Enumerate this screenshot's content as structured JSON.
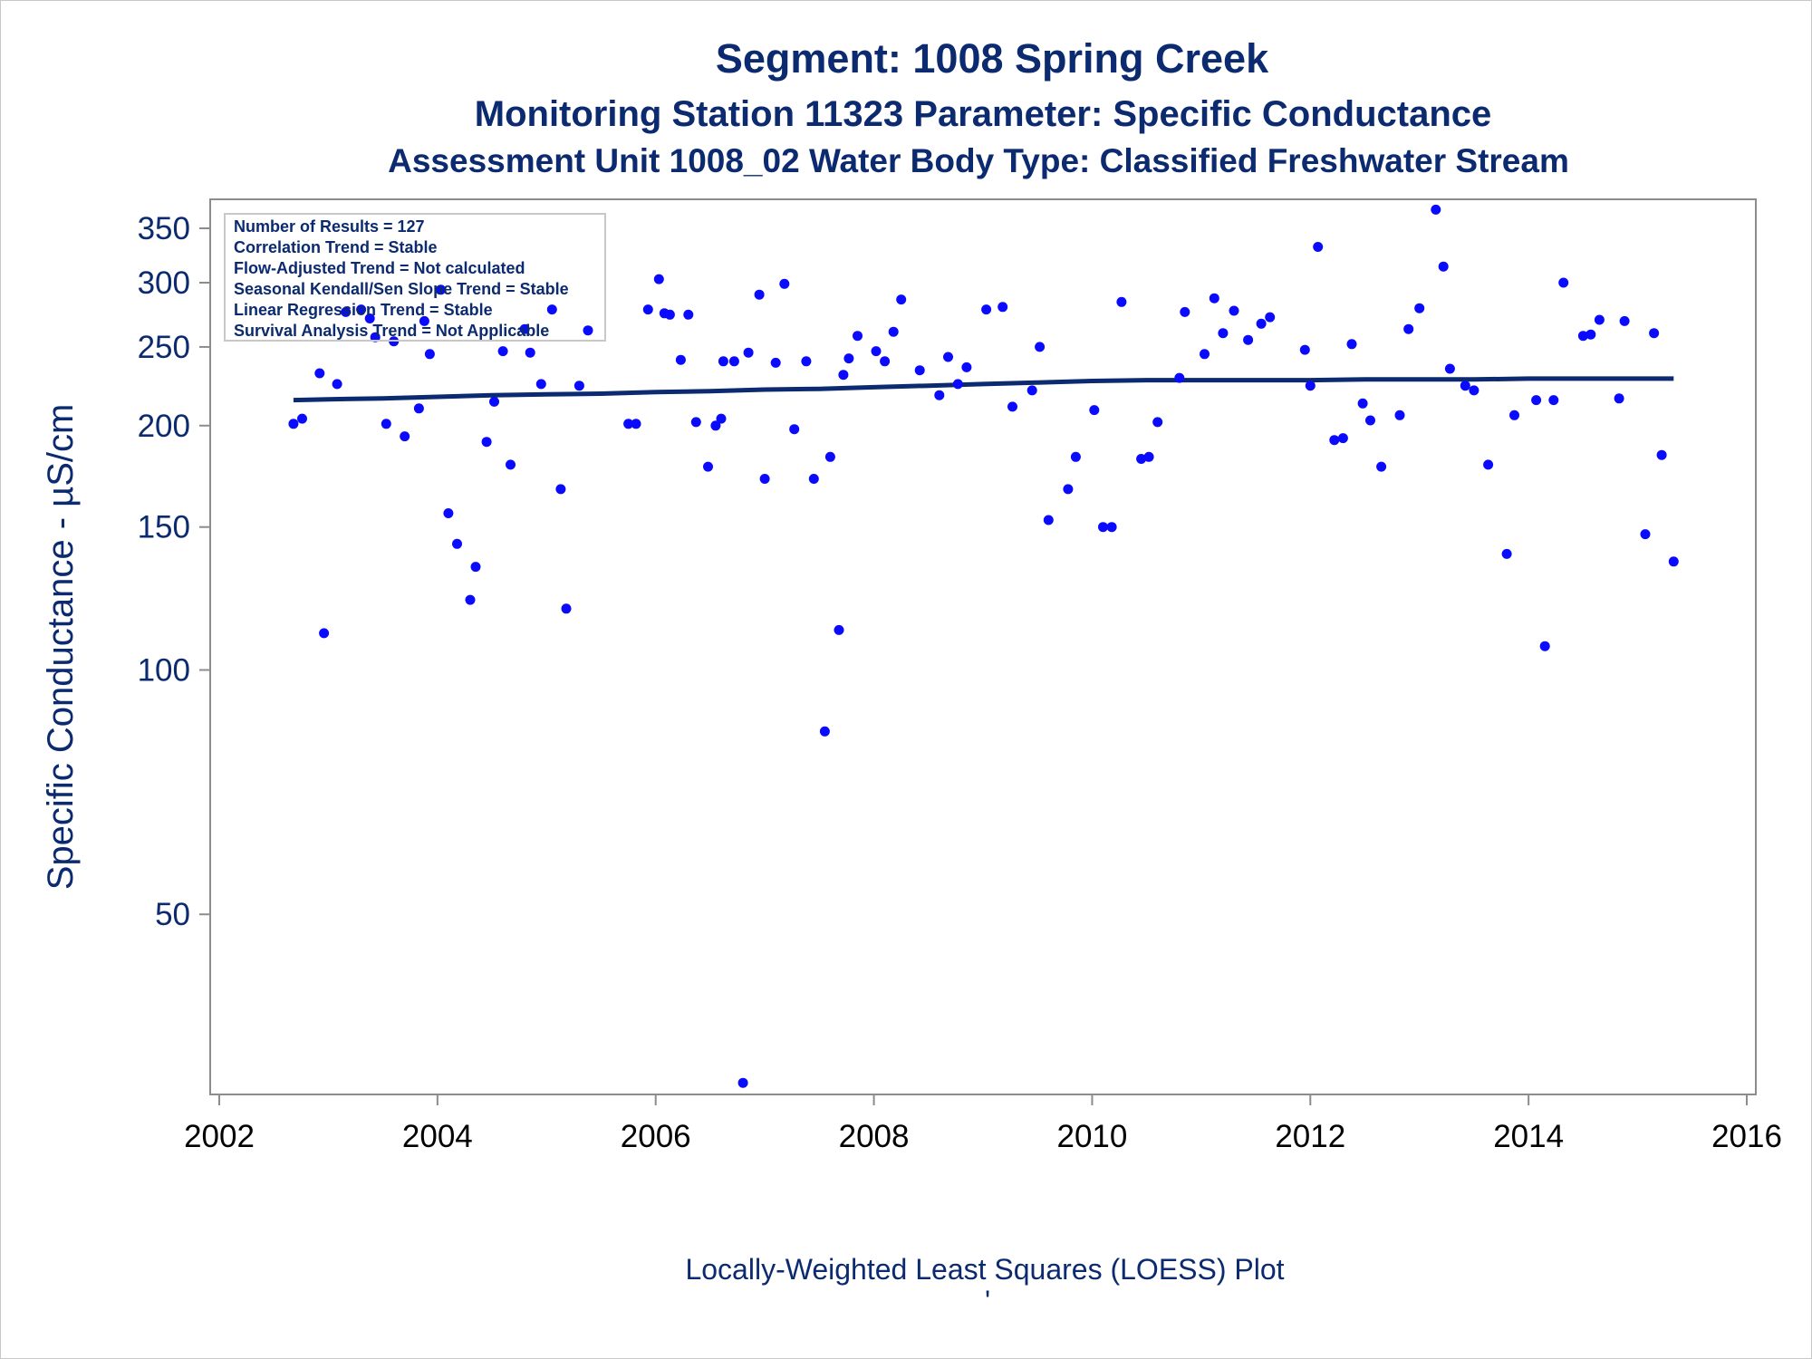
{
  "titles": {
    "line1": "Segment: 1008  Spring Creek",
    "line2": "Monitoring Station 11323 Parameter: Specific Conductance",
    "line3": "Assessment Unit 1008_02   Water Body Type: Classified Freshwater Stream"
  },
  "stats_box": [
    "Number of Results = 127",
    "Correlation Trend = Stable",
    "Flow-Adjusted Trend = Not calculated",
    "Seasonal Kendall/Sen Slope Trend = Stable",
    "Linear Regression Trend = Stable",
    "Survival Analysis Trend = Not Applicable"
  ],
  "footnote": "Locally-Weighted Least Squares (LOESS) Plot",
  "footnote_mark": "'",
  "colors": {
    "text": "#0b2a6f",
    "points": "#0a0aff",
    "loess_line": "#0b2a6f",
    "axis": "#8c8c8c"
  },
  "chart_data": {
    "type": "scatter",
    "title": "",
    "xlabel": "",
    "ylabel": "Specific Conductance -  µS/cm",
    "y_scale": "log",
    "xlim": [
      2002,
      2016
    ],
    "ylim": [
      30,
      380
    ],
    "x_ticks": [
      2002,
      2004,
      2006,
      2008,
      2010,
      2012,
      2014,
      2016
    ],
    "y_ticks": [
      50,
      100,
      150,
      200,
      250,
      300,
      350
    ],
    "grid": false,
    "legend": "none",
    "series": [
      {
        "kind": "points",
        "points": [
          [
            2002.68,
            201
          ],
          [
            2002.76,
            204
          ],
          [
            2002.92,
            232
          ],
          [
            2002.96,
            111
          ],
          [
            2003.08,
            225
          ],
          [
            2003.16,
            276
          ],
          [
            2003.3,
            278
          ],
          [
            2003.38,
            271
          ],
          [
            2003.43,
            257
          ],
          [
            2003.53,
            201
          ],
          [
            2003.6,
            254
          ],
          [
            2003.7,
            194
          ],
          [
            2003.83,
            210
          ],
          [
            2003.88,
            269
          ],
          [
            2003.93,
            245
          ],
          [
            2004.03,
            294
          ],
          [
            2004.1,
            156
          ],
          [
            2004.18,
            143
          ],
          [
            2004.3,
            122
          ],
          [
            2004.35,
            134
          ],
          [
            2004.45,
            191
          ],
          [
            2004.52,
            214
          ],
          [
            2004.6,
            247
          ],
          [
            2004.67,
            179
          ],
          [
            2004.8,
            263
          ],
          [
            2004.85,
            246
          ],
          [
            2004.95,
            225
          ],
          [
            2005.05,
            278
          ],
          [
            2005.13,
            167
          ],
          [
            2005.18,
            119
          ],
          [
            2005.3,
            224
          ],
          [
            2005.38,
            262
          ],
          [
            2005.75,
            201
          ],
          [
            2005.82,
            201
          ],
          [
            2005.93,
            278
          ],
          [
            2006.03,
            303
          ],
          [
            2006.08,
            275
          ],
          [
            2006.13,
            274
          ],
          [
            2006.23,
            241
          ],
          [
            2006.3,
            274
          ],
          [
            2006.37,
            202
          ],
          [
            2006.48,
            178
          ],
          [
            2006.55,
            200
          ],
          [
            2006.6,
            204
          ],
          [
            2006.62,
            240
          ],
          [
            2006.72,
            240
          ],
          [
            2006.8,
            31
          ],
          [
            2006.85,
            246
          ],
          [
            2006.95,
            290
          ],
          [
            2007.0,
            172
          ],
          [
            2007.1,
            239
          ],
          [
            2007.18,
            299
          ],
          [
            2007.27,
            198
          ],
          [
            2007.38,
            240
          ],
          [
            2007.45,
            172
          ],
          [
            2007.55,
            84
          ],
          [
            2007.6,
            183
          ],
          [
            2007.68,
            112
          ],
          [
            2007.72,
            231
          ],
          [
            2007.77,
            242
          ],
          [
            2007.85,
            258
          ],
          [
            2008.02,
            247
          ],
          [
            2008.1,
            240
          ],
          [
            2008.18,
            261
          ],
          [
            2008.25,
            286
          ],
          [
            2008.42,
            234
          ],
          [
            2008.6,
            218
          ],
          [
            2008.68,
            243
          ],
          [
            2008.77,
            225
          ],
          [
            2008.85,
            236
          ],
          [
            2009.03,
            278
          ],
          [
            2009.18,
            280
          ],
          [
            2009.27,
            211
          ],
          [
            2009.45,
            221
          ],
          [
            2009.52,
            250
          ],
          [
            2009.6,
            153
          ],
          [
            2009.78,
            167
          ],
          [
            2009.85,
            183
          ],
          [
            2010.02,
            209
          ],
          [
            2010.1,
            150
          ],
          [
            2010.18,
            150
          ],
          [
            2010.27,
            284
          ],
          [
            2010.45,
            182
          ],
          [
            2010.52,
            183
          ],
          [
            2010.6,
            202
          ],
          [
            2010.8,
            229
          ],
          [
            2010.85,
            276
          ],
          [
            2011.03,
            245
          ],
          [
            2011.12,
            287
          ],
          [
            2011.2,
            260
          ],
          [
            2011.3,
            277
          ],
          [
            2011.43,
            255
          ],
          [
            2011.55,
            267
          ],
          [
            2011.63,
            272
          ],
          [
            2011.95,
            248
          ],
          [
            2012.0,
            224
          ],
          [
            2012.07,
            332
          ],
          [
            2012.22,
            192
          ],
          [
            2012.3,
            193
          ],
          [
            2012.38,
            252
          ],
          [
            2012.48,
            213
          ],
          [
            2012.55,
            203
          ],
          [
            2012.65,
            178
          ],
          [
            2012.82,
            206
          ],
          [
            2012.9,
            263
          ],
          [
            2013.0,
            279
          ],
          [
            2013.15,
            369
          ],
          [
            2013.22,
            314
          ],
          [
            2013.28,
            235
          ],
          [
            2013.42,
            224
          ],
          [
            2013.5,
            221
          ],
          [
            2013.63,
            179
          ],
          [
            2013.8,
            139
          ],
          [
            2013.87,
            206
          ],
          [
            2014.07,
            215
          ],
          [
            2014.15,
            107
          ],
          [
            2014.23,
            215
          ],
          [
            2014.32,
            300
          ],
          [
            2014.5,
            258
          ],
          [
            2014.57,
            259
          ],
          [
            2014.65,
            270
          ],
          [
            2014.83,
            216
          ],
          [
            2014.88,
            269
          ],
          [
            2015.07,
            147
          ],
          [
            2015.15,
            260
          ],
          [
            2015.22,
            184
          ],
          [
            2015.33,
            136
          ]
        ]
      },
      {
        "kind": "loess_line",
        "points": [
          [
            2002.68,
            215
          ],
          [
            2003.0,
            215.5
          ],
          [
            2003.5,
            216
          ],
          [
            2004.0,
            217
          ],
          [
            2004.5,
            218
          ],
          [
            2005.0,
            218.5
          ],
          [
            2005.5,
            219
          ],
          [
            2006.0,
            220
          ],
          [
            2006.5,
            220.5
          ],
          [
            2007.0,
            221.5
          ],
          [
            2007.5,
            222
          ],
          [
            2008.0,
            223
          ],
          [
            2008.5,
            224
          ],
          [
            2009.0,
            225
          ],
          [
            2009.5,
            226
          ],
          [
            2010.0,
            227
          ],
          [
            2010.5,
            227.5
          ],
          [
            2011.0,
            227.5
          ],
          [
            2011.5,
            227.5
          ],
          [
            2012.0,
            227.5
          ],
          [
            2012.5,
            228
          ],
          [
            2013.0,
            228
          ],
          [
            2013.5,
            228
          ],
          [
            2014.0,
            228.5
          ],
          [
            2014.5,
            228.5
          ],
          [
            2015.0,
            228.5
          ],
          [
            2015.33,
            228.5
          ]
        ]
      }
    ]
  }
}
